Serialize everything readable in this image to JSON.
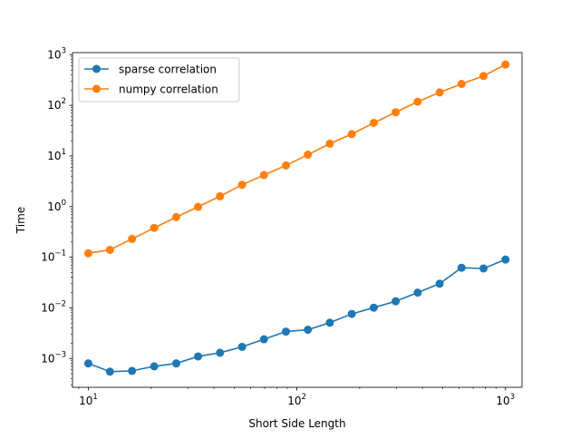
{
  "chart_data": {
    "type": "line",
    "title": "",
    "xlabel": "Short Side Length",
    "ylabel": "Time",
    "xscale": "log",
    "yscale": "log",
    "xlim": [
      8.4,
      1200
    ],
    "ylim": [
      0.00027,
      1100
    ],
    "grid": false,
    "legend_position": "top-left",
    "x_ticks": [
      {
        "value": 10,
        "label_base": "10",
        "label_exp": "1"
      },
      {
        "value": 100,
        "label_base": "10",
        "label_exp": "2"
      },
      {
        "value": 1000,
        "label_base": "10",
        "label_exp": "3"
      }
    ],
    "y_ticks": [
      {
        "value": 0.001,
        "label_base": "10",
        "label_exp": "−3"
      },
      {
        "value": 0.01,
        "label_base": "10",
        "label_exp": "−2"
      },
      {
        "value": 0.1,
        "label_base": "10",
        "label_exp": "−1"
      },
      {
        "value": 1,
        "label_base": "10",
        "label_exp": "0"
      },
      {
        "value": 10,
        "label_base": "10",
        "label_exp": "1"
      },
      {
        "value": 100,
        "label_base": "10",
        "label_exp": "2"
      },
      {
        "value": 1000,
        "label_base": "10",
        "label_exp": "3"
      }
    ],
    "x": [
      10,
      12.7,
      16.2,
      20.7,
      26.4,
      33.6,
      42.8,
      54.6,
      69.5,
      88.6,
      112.9,
      143.8,
      183.3,
      233.6,
      297.6,
      379.3,
      483.3,
      615.8,
      784.8,
      1000
    ],
    "series": [
      {
        "name": "sparse correlation",
        "color": "#1f77b4",
        "values": [
          0.0008,
          0.00055,
          0.00057,
          0.0007,
          0.0008,
          0.0011,
          0.0013,
          0.0017,
          0.0024,
          0.0034,
          0.0037,
          0.0051,
          0.0076,
          0.0101,
          0.0135,
          0.02,
          0.03,
          0.062,
          0.06,
          0.09
        ]
      },
      {
        "name": "numpy correlation",
        "color": "#ff7f0e",
        "values": [
          0.12,
          0.14,
          0.23,
          0.38,
          0.62,
          0.99,
          1.6,
          2.7,
          4.2,
          6.5,
          10.6,
          17.5,
          27,
          45,
          73,
          118,
          180,
          265,
          380,
          640
        ]
      }
    ]
  }
}
